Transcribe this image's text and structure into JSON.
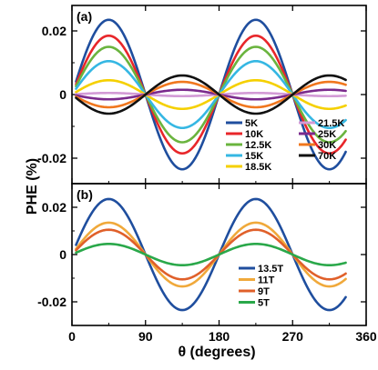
{
  "chart_data": [
    {
      "type": "line",
      "panel_label": "(a)",
      "xlim": [
        0,
        360
      ],
      "ylim": [
        -0.028,
        0.028
      ],
      "yticks": [
        0.02,
        0,
        -0.02
      ],
      "ytick_labels": [
        "0.02",
        "0",
        "-0.02"
      ],
      "xticks": [
        0,
        90,
        180,
        270,
        360
      ],
      "x_range": [
        5,
        335
      ],
      "phase_deg": 45,
      "legend_position": "lower-right",
      "series": [
        {
          "name": "5K",
          "amplitude": 0.0235,
          "color": "#1f4e9e"
        },
        {
          "name": "10K",
          "amplitude": 0.0185,
          "color": "#e8262a"
        },
        {
          "name": "12.5K",
          "amplitude": 0.015,
          "color": "#6ab43e"
        },
        {
          "name": "15K",
          "amplitude": 0.0105,
          "color": "#35b7e3"
        },
        {
          "name": "18.5K",
          "amplitude": 0.0045,
          "color": "#f5d000"
        },
        {
          "name": "21.5K",
          "amplitude": 0.0005,
          "color": "#d39bd6"
        },
        {
          "name": "25K",
          "amplitude": -0.0015,
          "color": "#7a2a8c"
        },
        {
          "name": "30K",
          "amplitude": -0.004,
          "color": "#f0771e"
        },
        {
          "name": "70K",
          "amplitude": -0.006,
          "color": "#111111"
        }
      ]
    },
    {
      "type": "line",
      "panel_label": "(b)",
      "xlim": [
        0,
        360
      ],
      "ylim": [
        -0.03,
        0.03
      ],
      "yticks": [
        0.02,
        0,
        -0.02
      ],
      "ytick_labels": [
        "0.02",
        "0",
        "-0.02"
      ],
      "xticks": [
        0,
        90,
        180,
        270,
        360
      ],
      "xtick_labels": [
        "0",
        "90",
        "180",
        "270",
        "360"
      ],
      "x_range": [
        5,
        335
      ],
      "phase_deg": 45,
      "legend_position": "lower-right",
      "series": [
        {
          "name": "13.5T",
          "amplitude": 0.0235,
          "color": "#1f4e9e"
        },
        {
          "name": "11T",
          "amplitude": 0.0135,
          "color": "#f0a93b"
        },
        {
          "name": "9T",
          "amplitude": 0.0105,
          "color": "#e0602a"
        },
        {
          "name": "5T",
          "amplitude": 0.0045,
          "color": "#2aa84a"
        }
      ]
    }
  ],
  "ylabel": "PHE  (%)",
  "xlabel": "θ (degrees)"
}
